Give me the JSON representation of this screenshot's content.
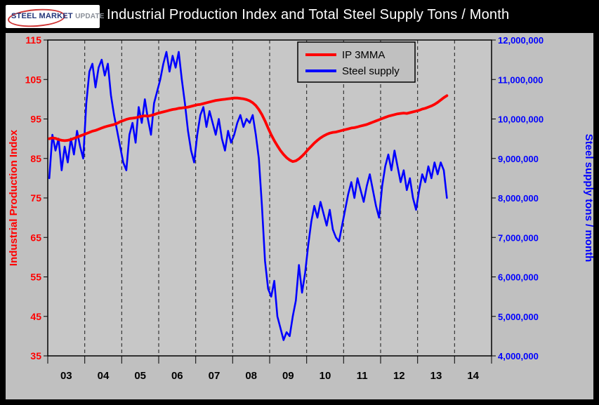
{
  "header": {
    "title": "Industrial Production Index and Total Steel Supply Tons / Month",
    "logo": {
      "steel": "STEEL",
      "market": "MARKET",
      "update": "UPDATE"
    }
  },
  "chart_data": {
    "type": "line",
    "title": "Industrial Production Index and Total Steel Supply Tons / Month",
    "grid": "vertical-dashed",
    "legend_position": "top-center",
    "x_years": [
      "03",
      "04",
      "05",
      "06",
      "07",
      "08",
      "09",
      "10",
      "11",
      "12",
      "13",
      "14"
    ],
    "start_year": 2003,
    "points_per_year": 12,
    "left_axis": {
      "label": "Industrial Production Index",
      "min": 35,
      "max": 115,
      "step": 10,
      "color": "#ff0000"
    },
    "right_axis": {
      "label": "Steel supply tons / month",
      "min": 4000000,
      "max": 12000000,
      "step": 1000000,
      "color": "#0000ff"
    },
    "series": [
      {
        "name": "IP 3MMA",
        "axis": "left",
        "color": "#ff0000",
        "width": 3.8,
        "values": [
          90.0,
          90.2,
          90.1,
          89.8,
          89.6,
          89.5,
          89.6,
          89.8,
          90.1,
          90.4,
          90.7,
          91.0,
          91.3,
          91.6,
          91.9,
          92.1,
          92.4,
          92.7,
          93.0,
          93.2,
          93.4,
          93.6,
          93.9,
          94.3,
          94.6,
          94.9,
          95.1,
          95.2,
          95.3,
          95.5,
          95.7,
          95.8,
          95.7,
          95.9,
          96.1,
          96.4,
          96.6,
          96.8,
          97.0,
          97.2,
          97.4,
          97.5,
          97.7,
          97.8,
          97.9,
          98.0,
          98.2,
          98.4,
          98.6,
          98.7,
          98.9,
          99.1,
          99.3,
          99.5,
          99.7,
          99.8,
          99.9,
          100.0,
          100.1,
          100.2,
          100.3,
          100.3,
          100.2,
          100.1,
          99.9,
          99.6,
          99.1,
          98.4,
          97.4,
          96.1,
          94.5,
          92.7,
          91.0,
          89.5,
          88.2,
          87.0,
          86.0,
          85.2,
          84.6,
          84.2,
          84.4,
          84.9,
          85.6,
          86.4,
          87.3,
          88.1,
          88.9,
          89.6,
          90.2,
          90.7,
          91.1,
          91.4,
          91.6,
          91.7,
          91.9,
          92.1,
          92.3,
          92.5,
          92.7,
          92.8,
          93.0,
          93.2,
          93.4,
          93.6,
          93.9,
          94.2,
          94.5,
          94.8,
          95.1,
          95.4,
          95.7,
          95.9,
          96.1,
          96.3,
          96.4,
          96.5,
          96.4,
          96.6,
          96.8,
          97.0,
          97.2,
          97.5,
          97.7,
          98.0,
          98.3,
          98.7,
          99.2,
          99.8,
          100.4,
          100.9
        ]
      },
      {
        "name": "Steel supply",
        "axis": "right",
        "color": "#0000ff",
        "width": 2.6,
        "values": [
          8500000,
          9600000,
          9200000,
          9500000,
          8700000,
          9300000,
          8900000,
          9500000,
          9100000,
          9700000,
          9300000,
          9000000,
          10400000,
          11200000,
          11400000,
          10800000,
          11300000,
          11500000,
          11100000,
          11400000,
          10600000,
          10100000,
          9700000,
          9300000,
          8900000,
          8700000,
          9600000,
          9900000,
          9400000,
          10300000,
          9900000,
          10500000,
          10000000,
          9600000,
          10400000,
          10700000,
          11000000,
          11400000,
          11700000,
          11200000,
          11600000,
          11300000,
          11700000,
          11000000,
          10400000,
          9700000,
          9200000,
          8900000,
          9600000,
          10100000,
          10300000,
          9800000,
          10200000,
          9900000,
          9600000,
          10000000,
          9500000,
          9200000,
          9700000,
          9400000,
          9600000,
          9900000,
          10100000,
          9800000,
          10000000,
          9900000,
          10100000,
          9600000,
          9000000,
          7800000,
          6400000,
          5700000,
          5500000,
          5900000,
          5000000,
          4700000,
          4400000,
          4600000,
          4500000,
          5000000,
          5400000,
          6300000,
          5600000,
          6100000,
          6800000,
          7400000,
          7800000,
          7500000,
          7900000,
          7600000,
          7300000,
          7700000,
          7200000,
          7000000,
          6900000,
          7300000,
          7700000,
          8100000,
          8400000,
          8000000,
          8500000,
          8200000,
          7900000,
          8300000,
          8600000,
          8200000,
          7800000,
          7500000,
          8300000,
          8800000,
          9100000,
          8700000,
          9200000,
          8800000,
          8400000,
          8700000,
          8200000,
          8500000,
          8000000,
          7700000,
          8200000,
          8600000,
          8400000,
          8800000,
          8500000,
          8900000,
          8600000,
          8900000,
          8700000,
          8000000
        ]
      }
    ]
  }
}
